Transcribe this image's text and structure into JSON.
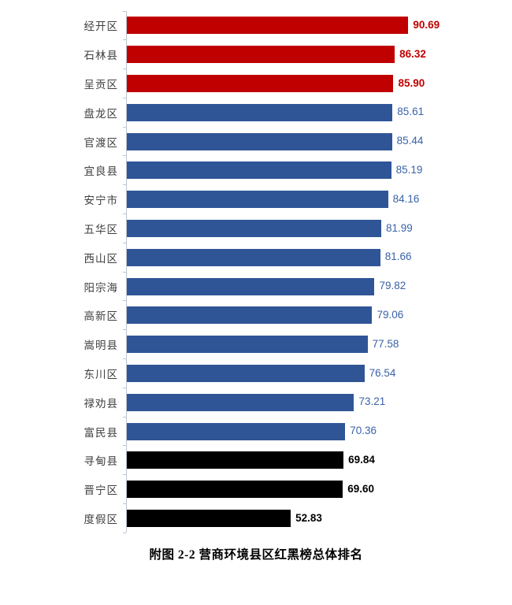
{
  "chart_data": {
    "type": "bar",
    "orientation": "horizontal",
    "title": "附图 2-2  营商环境县区红黑榜总体排名",
    "categories": [
      "经开区",
      "石林县",
      "呈贡区",
      "盘龙区",
      "官渡区",
      "宜良县",
      "安宁市",
      "五华区",
      "西山区",
      "阳宗海",
      "高新区",
      "嵩明县",
      "东川区",
      "禄劝县",
      "富民县",
      "寻甸县",
      "晋宁区",
      "度假区"
    ],
    "values": [
      90.69,
      86.32,
      85.9,
      85.61,
      85.44,
      85.19,
      84.16,
      81.99,
      81.66,
      79.82,
      79.06,
      77.58,
      76.54,
      73.21,
      70.36,
      69.84,
      69.6,
      52.83
    ],
    "value_labels": [
      "90.69",
      "86.32",
      "85.90",
      "85.61",
      "85.44",
      "85.19",
      "84.16",
      "81.99",
      "81.66",
      "79.82",
      "79.06",
      "77.58",
      "76.54",
      "73.21",
      "70.36",
      "69.84",
      "69.60",
      "52.83"
    ],
    "groups": [
      "red",
      "red",
      "red",
      "blue",
      "blue",
      "blue",
      "blue",
      "blue",
      "blue",
      "blue",
      "blue",
      "blue",
      "blue",
      "blue",
      "blue",
      "black",
      "black",
      "black"
    ],
    "bar_colors": {
      "red": "#c00000",
      "blue": "#2f5597",
      "black": "#000000"
    },
    "value_text_colors": {
      "red": "#c00000",
      "blue": "#3a62a8",
      "black": "#000000"
    },
    "label_color": "#3f3f3f",
    "axis_color": "#bfc6cf",
    "xlim": [
      0,
      100
    ],
    "grid": false,
    "legend_position": "none"
  }
}
